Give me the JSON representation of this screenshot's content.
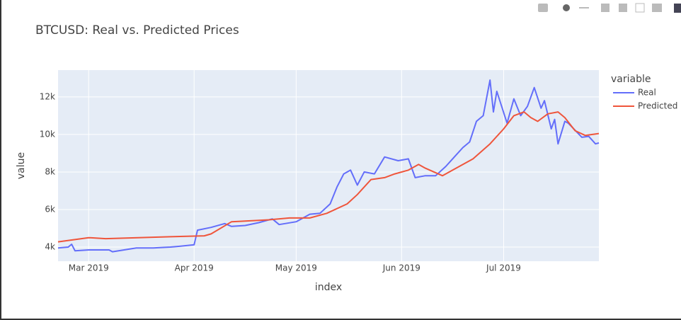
{
  "chart_data": {
    "type": "line",
    "title": "BTCUSD: Real vs. Predicted Prices",
    "x_label": "index",
    "y_label": "value",
    "legend_title": "variable",
    "xlim": [
      "2019-02-20",
      "2019-07-29"
    ],
    "xticks": [
      {
        "value": "2019-03-01",
        "label": "Mar 2019"
      },
      {
        "value": "2019-04-01",
        "label": "Apr 2019"
      },
      {
        "value": "2019-05-01",
        "label": "May 2019"
      },
      {
        "value": "2019-06-01",
        "label": "Jun 2019"
      },
      {
        "value": "2019-07-01",
        "label": "Jul 2019"
      }
    ],
    "ylim": [
      3245,
      13430
    ],
    "yticks": [
      {
        "value": 4000,
        "label": "4k"
      },
      {
        "value": 6000,
        "label": "6k"
      },
      {
        "value": 8000,
        "label": "8k"
      },
      {
        "value": 10000,
        "label": "10k"
      },
      {
        "value": 12000,
        "label": "12k"
      }
    ],
    "grid": true,
    "series": [
      {
        "name": "Real",
        "color": "#636efa",
        "x": [
          "2019-02-20",
          "2019-02-23",
          "2019-02-24",
          "2019-02-25",
          "2019-03-01",
          "2019-03-05",
          "2019-03-07",
          "2019-03-08",
          "2019-03-15",
          "2019-03-20",
          "2019-03-25",
          "2019-03-28",
          "2019-04-01",
          "2019-04-02",
          "2019-04-06",
          "2019-04-10",
          "2019-04-12",
          "2019-04-16",
          "2019-04-20",
          "2019-04-24",
          "2019-04-26",
          "2019-05-01",
          "2019-05-05",
          "2019-05-08",
          "2019-05-11",
          "2019-05-13",
          "2019-05-15",
          "2019-05-17",
          "2019-05-19",
          "2019-05-21",
          "2019-05-24",
          "2019-05-27",
          "2019-05-31",
          "2019-06-03",
          "2019-06-05",
          "2019-06-08",
          "2019-06-11",
          "2019-06-14",
          "2019-06-17",
          "2019-06-19",
          "2019-06-21",
          "2019-06-23",
          "2019-06-25",
          "2019-06-27",
          "2019-06-28",
          "2019-06-29",
          "2019-07-02",
          "2019-07-04",
          "2019-07-06",
          "2019-07-08",
          "2019-07-10",
          "2019-07-12",
          "2019-07-13",
          "2019-07-15",
          "2019-07-16",
          "2019-07-17",
          "2019-07-19",
          "2019-07-20",
          "2019-07-24",
          "2019-07-26",
          "2019-07-28",
          "2019-07-29"
        ],
        "values": [
          3950,
          4000,
          4150,
          3800,
          3850,
          3850,
          3850,
          3750,
          3950,
          3950,
          4000,
          4050,
          4120,
          4900,
          5050,
          5250,
          5100,
          5150,
          5300,
          5500,
          5200,
          5350,
          5750,
          5800,
          6300,
          7200,
          7900,
          8100,
          7300,
          8000,
          7900,
          8800,
          8600,
          8700,
          7700,
          7800,
          7800,
          8300,
          8900,
          9300,
          9600,
          10700,
          11000,
          12900,
          11200,
          12300,
          10600,
          11900,
          11000,
          11500,
          12500,
          11400,
          11800,
          10300,
          10800,
          9500,
          10700,
          10600,
          9850,
          9900,
          9500,
          9550
        ]
      },
      {
        "name": "Predicted",
        "color": "#ef553b",
        "x": [
          "2019-02-20",
          "2019-03-01",
          "2019-03-06",
          "2019-03-25",
          "2019-04-04",
          "2019-04-06",
          "2019-04-12",
          "2019-04-23",
          "2019-04-29",
          "2019-05-05",
          "2019-05-10",
          "2019-05-16",
          "2019-05-19",
          "2019-05-23",
          "2019-05-27",
          "2019-05-30",
          "2019-06-03",
          "2019-06-06",
          "2019-06-08",
          "2019-06-13",
          "2019-06-16",
          "2019-06-22",
          "2019-06-27",
          "2019-07-01",
          "2019-07-04",
          "2019-07-07",
          "2019-07-09",
          "2019-07-11",
          "2019-07-14",
          "2019-07-17",
          "2019-07-19",
          "2019-07-22",
          "2019-07-25",
          "2019-07-29"
        ],
        "values": [
          4280,
          4500,
          4450,
          4550,
          4600,
          4700,
          5350,
          5450,
          5550,
          5550,
          5800,
          6300,
          6800,
          7600,
          7700,
          7900,
          8100,
          8400,
          8200,
          7800,
          8100,
          8700,
          9500,
          10300,
          11000,
          11200,
          10900,
          10700,
          11100,
          11200,
          10900,
          10200,
          9950,
          10050
        ]
      }
    ]
  }
}
